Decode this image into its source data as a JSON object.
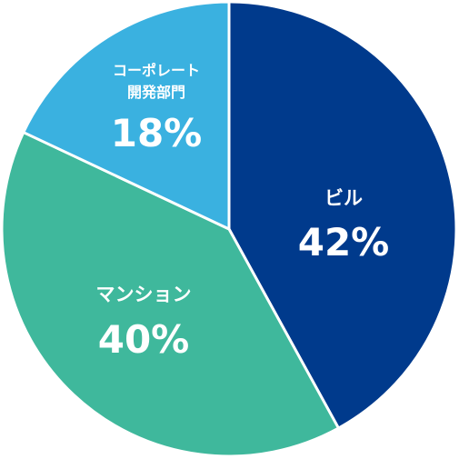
{
  "chart_data": {
    "type": "pie",
    "title": "",
    "legend": "none",
    "slices": [
      {
        "label_lines": [
          "ビル"
        ],
        "value": 42,
        "value_label": "42%",
        "color": "#003a8c"
      },
      {
        "label_lines": [
          "マンション"
        ],
        "value": 40,
        "value_label": "40%",
        "color": "#3fb89c"
      },
      {
        "label_lines": [
          "コーポレート",
          "開発部門"
        ],
        "value": 18,
        "value_label": "18%",
        "color": "#3ab1e0"
      }
    ]
  }
}
